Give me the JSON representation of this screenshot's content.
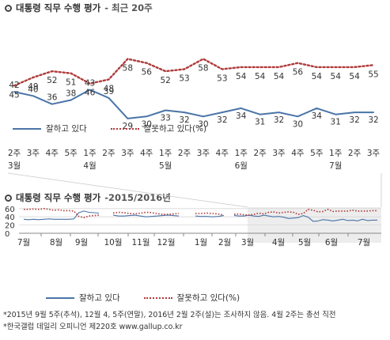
{
  "top": {
    "title": "대통령 직무 수행 평가",
    "subtitle": "- 최근 20주",
    "legend": {
      "approve": "잘하고 있다",
      "disapprove": "잘못하고 있다(%)"
    },
    "x_tick_line1": [
      "2주",
      "3주",
      "4주",
      "5주",
      "1주",
      "2주",
      "3주",
      "4주",
      "1주",
      "2주",
      "3주",
      "4주",
      "1주",
      "2주",
      "3주",
      "4주",
      "5주",
      "1주",
      "2주",
      "3주"
    ],
    "month_labels": [
      {
        "index": 0,
        "label": "3월"
      },
      {
        "index": 4,
        "label": "4월"
      },
      {
        "index": 8,
        "label": "5월"
      },
      {
        "index": 12,
        "label": "6월"
      },
      {
        "index": 17,
        "label": "7월"
      }
    ]
  },
  "bottom": {
    "title": "대통령 직무 수행 평가",
    "subtitle": "-2015/2016년",
    "y_ticks": [
      "60",
      "40",
      "20",
      "0"
    ],
    "months": [
      "7월",
      "8월",
      "9월",
      "10월",
      "11월",
      "12월",
      "1월",
      "2월",
      "3월",
      "4월",
      "5월",
      "6월",
      "7월"
    ],
    "legend": {
      "approve": "잘하고 있다",
      "disapprove": "잘못하고 있다(%)"
    }
  },
  "notes": [
    "*2015년 9월 5주(추석), 12월 4, 5주(연말), 2016년 2월 2주(설)는 조사하지 않음. 4월 2주는 총선 직전",
    "*한국갤럽 데일리 오피니언 제220호 www.gallup.co.kr"
  ],
  "colors": {
    "approve": "#4a74a8",
    "disapprove": "#b03a3a",
    "highlight": "#ededed",
    "axis": "#888888"
  },
  "chart_data": [
    {
      "type": "line",
      "title": "대통령 직무 수행 평가 - 최근 20주",
      "categories": [
        "3월 2주",
        "3월 3주",
        "3월 4주",
        "3월 5주",
        "4월 1주",
        "4월 2주",
        "4월 3주",
        "4월 4주",
        "5월 1주",
        "5월 2주",
        "5월 3주",
        "5월 4주",
        "6월 1주",
        "6월 2주",
        "6월 3주",
        "6월 4주",
        "6월 5주",
        "7월 1주",
        "7월 2주",
        "7월 3주"
      ],
      "series": [
        {
          "name": "잘하고 있다",
          "values": [
            42,
            40,
            36,
            38,
            43,
            39,
            29,
            30,
            33,
            32,
            30,
            32,
            34,
            31,
            32,
            30,
            34,
            31,
            32,
            32
          ]
        },
        {
          "name": "잘못하고 있다(%)",
          "values": [
            45,
            49,
            52,
            51,
            46,
            48,
            58,
            56,
            52,
            53,
            58,
            53,
            54,
            54,
            54,
            56,
            54,
            54,
            54,
            55
          ]
        }
      ],
      "data_labels": true,
      "legend": "bottom"
    },
    {
      "type": "line",
      "title": "대통령 직무 수행 평가 -2015/2016년",
      "ylim": [
        0,
        70
      ],
      "x_ticks": [
        "7월",
        "8월",
        "9월",
        "10월",
        "11월",
        "12월",
        "1월",
        "2월",
        "3월",
        "4월",
        "5월",
        "6월",
        "7월"
      ],
      "grid": true,
      "legend": "bottom",
      "series": [
        {
          "name": "잘하고 있다",
          "segments": [
            [
              34,
              33,
              34,
              33,
              34,
              35,
              34,
              34,
              34,
              34,
              35,
              50,
              54,
              51,
              50,
              49
            ],
            [
              44,
              42,
              42,
              43,
              44,
              42,
              40,
              41,
              42,
              43,
              44,
              43,
              42
            ],
            [
              42,
              41,
              41,
              40,
              41,
              43
            ],
            [
              43,
              42,
              42,
              44,
              42,
              41,
              44,
              42,
              40,
              41,
              39,
              36,
              37,
              38,
              43,
              39,
              29,
              30,
              33,
              32,
              30,
              32,
              34,
              31,
              32,
              30,
              34,
              31,
              32,
              32
            ]
          ]
        },
        {
          "name": "잘못하고 있다(%)",
          "segments": [
            [
              58,
              58,
              59,
              58,
              60,
              58,
              56,
              57,
              55,
              55,
              54,
              41,
              38,
              42,
              43,
              44
            ],
            [
              49,
              51,
              50,
              48,
              47,
              49,
              51,
              50,
              48,
              46,
              46,
              47,
              48
            ],
            [
              48,
              48,
              49,
              48,
              47,
              44
            ],
            [
              46,
              47,
              45,
              44,
              46,
              49,
              47,
              51,
              52,
              49,
              51,
              52,
              51,
              46,
              48,
              58,
              56,
              52,
              53,
              58,
              53,
              54,
              54,
              54,
              56,
              54,
              54,
              54,
              55,
              55
            ]
          ]
        }
      ]
    }
  ]
}
